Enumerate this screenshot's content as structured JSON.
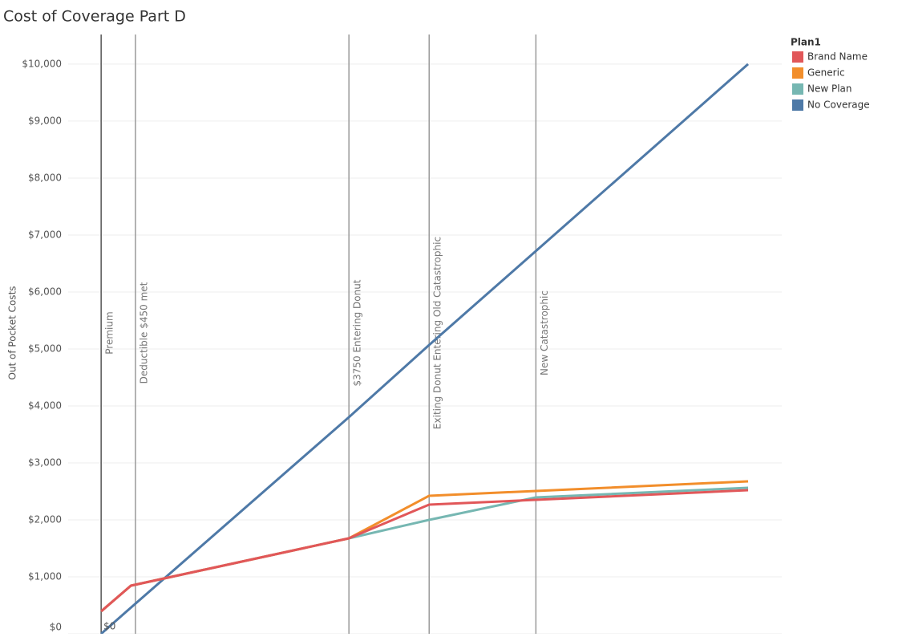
{
  "chart_data": {
    "type": "line",
    "title": "Cost of Coverage Part D",
    "y_label": "Out of Pocket Costs",
    "x": [
      0,
      460,
      3830,
      5070,
      6720,
      10000
    ],
    "xlim": [
      -510,
      10520
    ],
    "ylim": [
      0,
      10520
    ],
    "yticks": [
      {
        "value": 0,
        "label": "$0"
      },
      {
        "value": 1000,
        "label": "$1,000"
      },
      {
        "value": 2000,
        "label": "$2,000"
      },
      {
        "value": 3000,
        "label": "$3,000"
      },
      {
        "value": 4000,
        "label": "$4,000"
      },
      {
        "value": 5000,
        "label": "$5,000"
      },
      {
        "value": 6000,
        "label": "$6,000"
      },
      {
        "value": 7000,
        "label": "$7,000"
      },
      {
        "value": 8000,
        "label": "$8,000"
      },
      {
        "value": 9000,
        "label": "$9,000"
      },
      {
        "value": 10000,
        "label": "$10,000"
      }
    ],
    "grid": true,
    "legend_title": "Plan1",
    "legend_position": "right",
    "series": [
      {
        "name": "Brand Name",
        "color": "#e15759",
        "values": [
          394,
          845,
          1676,
          2268,
          2352,
          2521
        ]
      },
      {
        "name": "Generic",
        "color": "#f28e2b",
        "values": [
          394,
          845,
          1676,
          2423,
          2507,
          2676
        ]
      },
      {
        "name": "New Plan",
        "color": "#76b7b2",
        "values": [
          394,
          845,
          1676,
          2000,
          2394,
          2563
        ]
      },
      {
        "name": "No Coverage",
        "color": "#4e79a7",
        "values": [
          0,
          460,
          3803,
          5070,
          6720,
          10000
        ]
      }
    ],
    "reference_lines": [
      {
        "x": 0,
        "label": "Premium"
      },
      {
        "x": 530,
        "label": "Deductible $450 met"
      },
      {
        "x": 3830,
        "label": "$3750 Entering Donut"
      },
      {
        "x": 5070,
        "label": "Exiting Donut Entering Old Catastrophic"
      },
      {
        "x": 6720,
        "label": "New Catastrophic"
      }
    ],
    "annotations": [
      {
        "x": 0,
        "y": 0,
        "text": "$0"
      }
    ]
  }
}
